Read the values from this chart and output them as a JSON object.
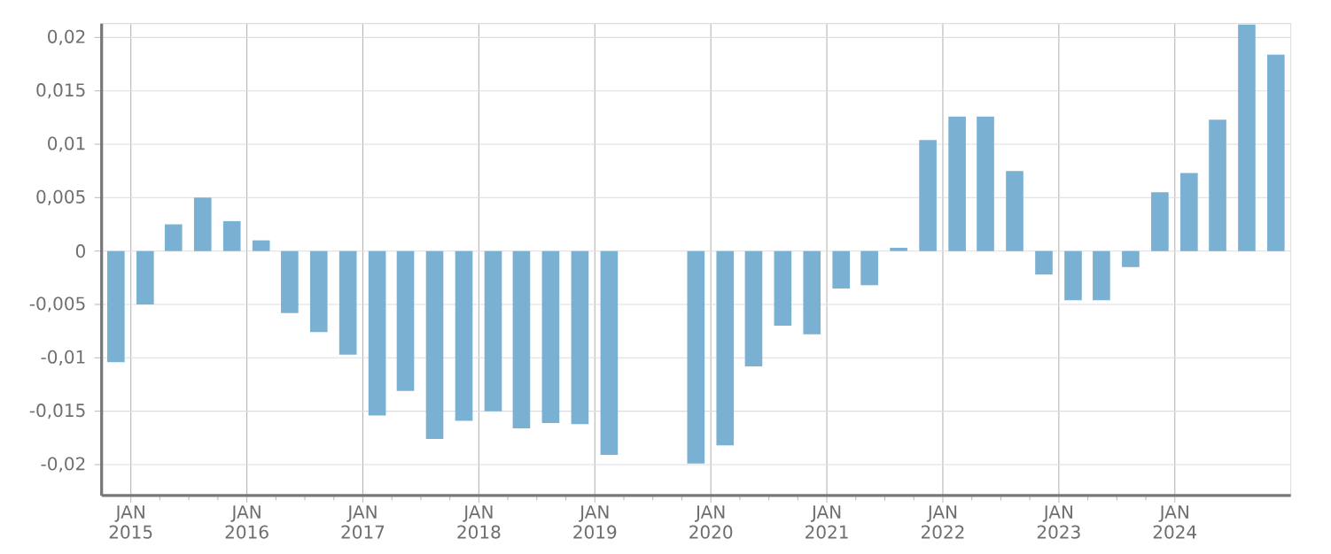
{
  "chart_data": {
    "type": "bar",
    "color": "#7ab1d3",
    "x": [
      "2014-11-15",
      "2015-02-15",
      "2015-05-15",
      "2015-08-15",
      "2015-11-15",
      "2016-02-15",
      "2016-05-15",
      "2016-08-15",
      "2016-11-15",
      "2017-02-15",
      "2017-05-15",
      "2017-08-15",
      "2017-11-15",
      "2018-02-15",
      "2018-05-15",
      "2018-08-15",
      "2018-11-15",
      "2019-02-15",
      "2019-05-15",
      "2019-08-15",
      "2019-11-15",
      "2020-02-15",
      "2020-05-15",
      "2020-08-15",
      "2020-11-15",
      "2021-02-15",
      "2021-05-15",
      "2021-08-15",
      "2021-11-15",
      "2022-02-15",
      "2022-05-15",
      "2022-08-15",
      "2022-11-15",
      "2023-02-15",
      "2023-05-15",
      "2023-08-15",
      "2023-11-15",
      "2024-02-15",
      "2024-05-15",
      "2024-08-15",
      "2024-11-15"
    ],
    "values": [
      -0.0104,
      -0.005,
      0.0025,
      0.005,
      0.0028,
      0.001,
      -0.0058,
      -0.0076,
      -0.0097,
      -0.0154,
      -0.0131,
      -0.0176,
      -0.0159,
      -0.015,
      -0.0166,
      -0.0161,
      -0.0162,
      -0.0191,
      null,
      null,
      -0.0199,
      -0.0182,
      -0.0108,
      -0.007,
      -0.0078,
      -0.0035,
      -0.0032,
      0.0003,
      0.0104,
      0.0126,
      0.0126,
      0.0075,
      -0.0022,
      -0.0046,
      -0.0046,
      -0.0015,
      0.0055,
      0.0073,
      0.0123,
      0.0212,
      0.0184
    ],
    "xlim": [
      "2014-10-01",
      "2025-01-01"
    ],
    "xticks": [
      {
        "value": "2015-01-01",
        "label": "JAN 2015"
      },
      {
        "value": "2016-01-01",
        "label": "JAN 2016"
      },
      {
        "value": "2017-01-01",
        "label": "JAN 2017"
      },
      {
        "value": "2018-01-01",
        "label": "JAN 2018"
      },
      {
        "value": "2019-01-01",
        "label": "JAN 2019"
      },
      {
        "value": "2020-01-01",
        "label": "JAN 2020"
      },
      {
        "value": "2021-01-01",
        "label": "JAN 2021"
      },
      {
        "value": "2022-01-01",
        "label": "JAN 2022"
      },
      {
        "value": "2023-01-01",
        "label": "JAN 2023"
      },
      {
        "value": "2024-01-01",
        "label": "JAN 2024"
      }
    ],
    "ylim": [
      -0.0229,
      0.0213
    ],
    "yticks": [
      {
        "value": -0.02,
        "label": "-0,02"
      },
      {
        "value": -0.015,
        "label": "-0,015"
      },
      {
        "value": -0.01,
        "label": "-0,01"
      },
      {
        "value": -0.005,
        "label": "-0,005"
      },
      0,
      {
        "value": 0.005,
        "label": "0,005"
      },
      {
        "value": 0.01,
        "label": "0,01"
      },
      {
        "value": 0.015,
        "label": "0,015"
      },
      {
        "value": 0.02,
        "label": "0,02"
      }
    ],
    "grid": true
  }
}
